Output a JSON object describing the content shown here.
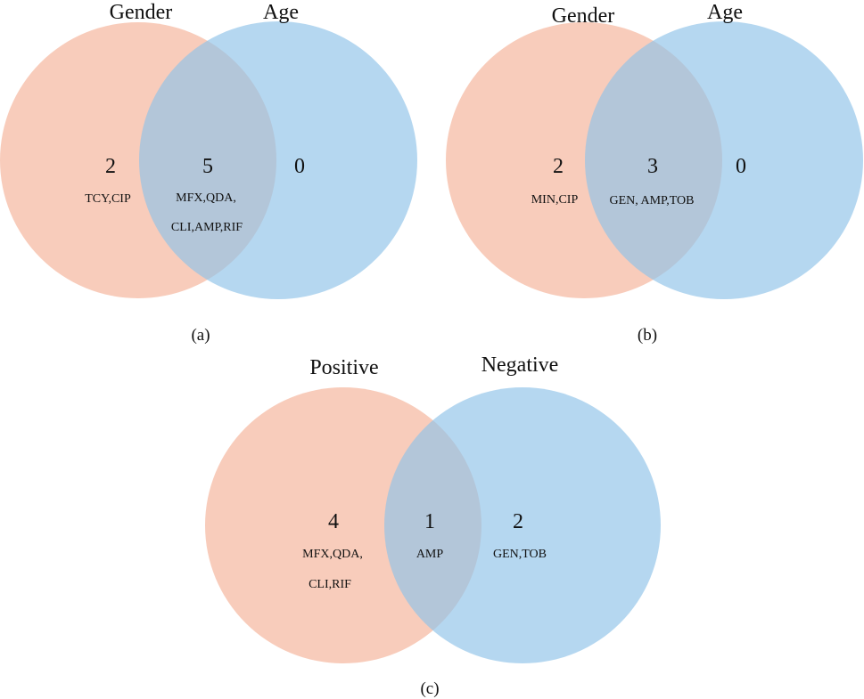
{
  "colors": {
    "left_set": "#f5b79e",
    "right_set": "#8ec3e8",
    "text": "#111111"
  },
  "panels": [
    {
      "caption": "(a)",
      "left_label": "Gender",
      "right_label": "Age",
      "left_only": {
        "count": "2",
        "items": [
          "TCY,CIP"
        ]
      },
      "intersection": {
        "count": "5",
        "items": [
          "MFX,QDA,",
          "CLI,AMP,RIF"
        ]
      },
      "right_only": {
        "count": "0",
        "items": []
      }
    },
    {
      "caption": "(b)",
      "left_label": "Gender",
      "right_label": "Age",
      "left_only": {
        "count": "2",
        "items": [
          "MIN,CIP"
        ]
      },
      "intersection": {
        "count": "3",
        "items": [
          "GEN, AMP,TOB"
        ]
      },
      "right_only": {
        "count": "0",
        "items": []
      }
    },
    {
      "caption": "(c)",
      "left_label": "Positive",
      "right_label": "Negative",
      "left_only": {
        "count": "4",
        "items": [
          "MFX,QDA,",
          "CLI,RIF"
        ]
      },
      "intersection": {
        "count": "1",
        "items": [
          "AMP"
        ]
      },
      "right_only": {
        "count": "2",
        "items": [
          "GEN,TOB"
        ]
      }
    }
  ]
}
